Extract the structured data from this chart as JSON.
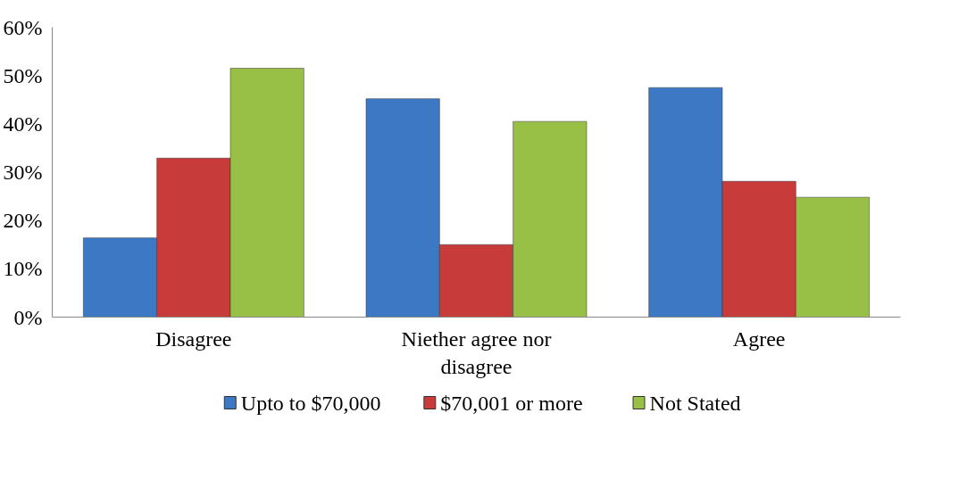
{
  "chart_data": {
    "type": "bar",
    "categories": [
      "Disagree",
      "Niether agree nor disagree",
      "Agree"
    ],
    "series": [
      {
        "name": "Upto to $70,000",
        "color": "#3c78c4",
        "values": [
          16.4,
          45.2,
          47.5
        ]
      },
      {
        "name": "$70,001  or more",
        "color": "#c73c3a",
        "values": [
          32.9,
          15.0,
          28.1
        ]
      },
      {
        "name": "Not Stated",
        "color": "#98bf46",
        "values": [
          51.5,
          40.5,
          24.8
        ]
      }
    ],
    "ylim": [
      0,
      60
    ],
    "yticks": [
      {
        "value": 0,
        "label": "0%"
      },
      {
        "value": 10,
        "label": "10%"
      },
      {
        "value": 20,
        "label": "20%"
      },
      {
        "value": 30,
        "label": "30%"
      },
      {
        "value": 40,
        "label": "40%"
      },
      {
        "value": 50,
        "label": "50%"
      },
      {
        "value": 60,
        "label": "60%"
      }
    ],
    "grid": false,
    "legend": "bottom"
  }
}
